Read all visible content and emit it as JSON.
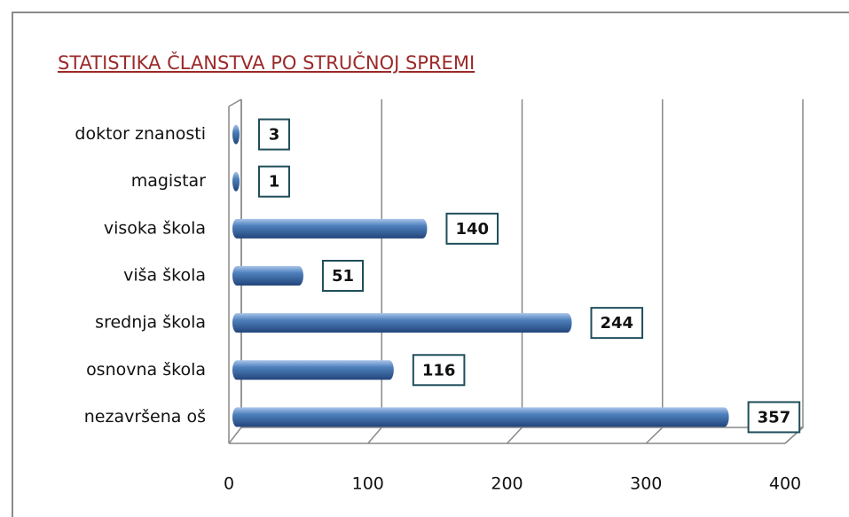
{
  "chart_data": {
    "type": "bar",
    "orientation": "horizontal",
    "title": "STATISTIKA ČLANSTVA PO STRUČNOJ SPREMI",
    "categories": [
      "doktor znanosti",
      "magistar",
      "visoka škola",
      "viša škola",
      "srednja škola",
      "osnovna škola",
      "nezavršena oš"
    ],
    "values": [
      3,
      1,
      140,
      51,
      244,
      116,
      357
    ],
    "color": "#4f81bd",
    "xlim": [
      0,
      400
    ],
    "xticks": [
      0,
      100,
      200,
      300,
      400
    ],
    "grid": true
  }
}
